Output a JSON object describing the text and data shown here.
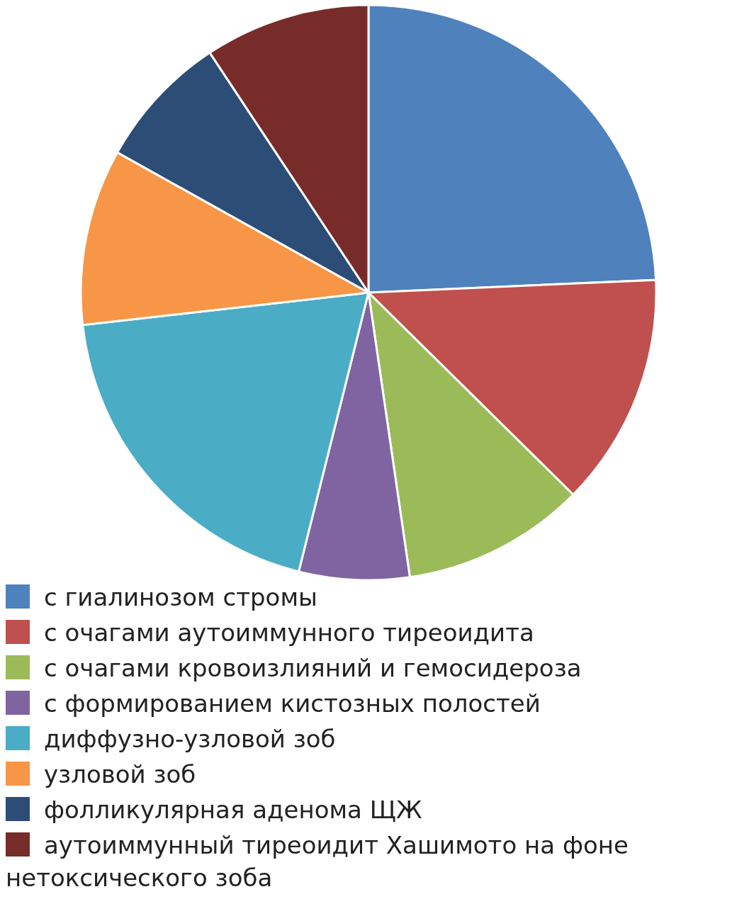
{
  "chart_data": {
    "type": "pie",
    "categories": [
      "с гиалинозом стромы",
      "с очагами аутоиммунного тиреоидита",
      "с очагами кровоизлияний и гемосидероза",
      "с формированием кистозных полостей",
      "диффузно-узловой зоб",
      "узловой зоб",
      "фолликулярная аденома ЩЖ",
      "аутоиммунный тиреоидит Хашимото на фоне нетоксического зоба"
    ],
    "values": [
      24.3,
      13.1,
      10.3,
      6.2,
      19.3,
      9.9,
      7.6,
      9.3
    ],
    "colors": [
      "#4f81bd",
      "#c0504d",
      "#9bbb59",
      "#8064a2",
      "#4bacc6",
      "#f79646",
      "#2c4d75",
      "#772c2a"
    ],
    "legend": "bottom"
  }
}
